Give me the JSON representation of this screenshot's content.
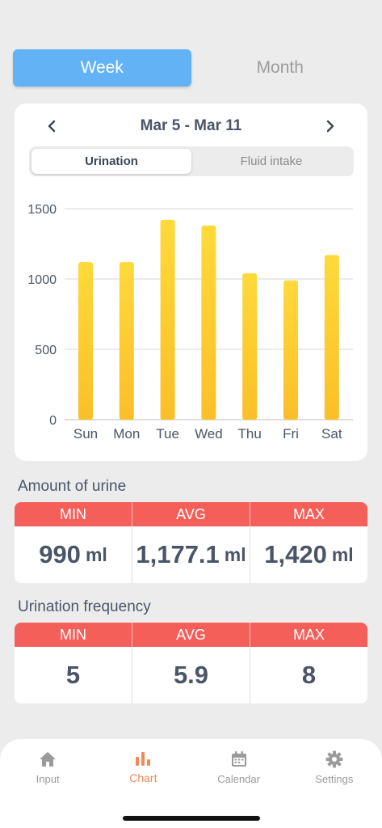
{
  "period_tabs": [
    {
      "label": "Week",
      "active": true
    },
    {
      "label": "Month",
      "active": false
    }
  ],
  "date_range": "Mar 5 - Mar 11",
  "metric_tabs": [
    {
      "label": "Urination",
      "active": true
    },
    {
      "label": "Fluid intake",
      "active": false
    }
  ],
  "colors": {
    "accent_blue": "#62b2f5",
    "bar_top": "#ffd93a",
    "bar_bottom": "#fbbf28",
    "stat_header": "#f45f5a",
    "active_tab": "#f08a5d"
  },
  "chart_data": {
    "type": "bar",
    "categories": [
      "Sun",
      "Mon",
      "Tue",
      "Wed",
      "Thu",
      "Fri",
      "Sat"
    ],
    "values": [
      1120,
      1120,
      1420,
      1380,
      1040,
      990,
      1170
    ],
    "yticks": [
      0,
      500,
      1000,
      1500
    ],
    "ylim": [
      0,
      1500
    ],
    "grid": true,
    "title": "",
    "xlabel": "",
    "ylabel": ""
  },
  "amount": {
    "title": "Amount of urine",
    "headers": [
      "MIN",
      "AVG",
      "MAX"
    ],
    "values": [
      "990",
      "1,177.1",
      "1,420"
    ],
    "unit": "ml"
  },
  "frequency": {
    "title": "Urination frequency",
    "headers": [
      "MIN",
      "AVG",
      "MAX"
    ],
    "values": [
      "5",
      "5.9",
      "8"
    ]
  },
  "tabbar": [
    {
      "label": "Input",
      "icon": "home-icon",
      "active": false
    },
    {
      "label": "Chart",
      "icon": "bar-chart-icon",
      "active": true
    },
    {
      "label": "Calendar",
      "icon": "calendar-icon",
      "active": false
    },
    {
      "label": "Settings",
      "icon": "gear-icon",
      "active": false
    }
  ]
}
